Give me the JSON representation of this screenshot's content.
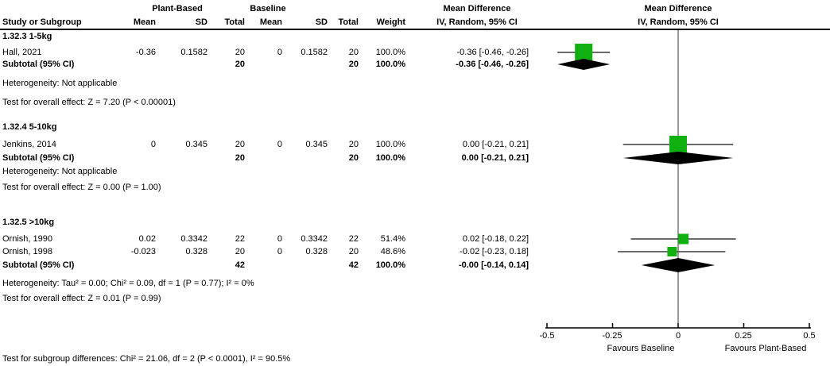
{
  "header": {
    "group_plant": "Plant-Based",
    "group_baseline": "Baseline",
    "md_left_title": "Mean Difference",
    "md_left_sub": "IV, Random, 95% CI",
    "md_right_title": "Mean Difference",
    "md_right_sub": "IV, Random, 95% CI",
    "study_col": "Study or Subgroup",
    "cols": {
      "pb_mean": "Mean",
      "pb_sd": "SD",
      "pb_total": "Total",
      "bl_mean": "Mean",
      "bl_sd": "SD",
      "bl_total": "Total",
      "weight": "Weight"
    }
  },
  "colors": {
    "marker_green": "#10B010",
    "diamond_black": "#000000",
    "ci_line": "#3a3a3a",
    "axis_black": "#000000"
  },
  "rows": [
    {
      "type": "section",
      "label": "1.32.3 1-5kg"
    },
    {
      "type": "study",
      "label": "Hall, 2021",
      "pb_mean": "-0.36",
      "pb_sd": "0.1582",
      "pb_total": "20",
      "bl_mean": "0",
      "bl_sd": "0.1582",
      "bl_total": "20",
      "weight": "100.0%",
      "md": "-0.36 [-0.46, -0.26]",
      "est": -0.36,
      "lo": -0.46,
      "hi": -0.26
    },
    {
      "type": "subtotal",
      "label": "Subtotal (95% CI)",
      "pb_total": "20",
      "bl_total": "20",
      "weight": "100.0%",
      "md": "-0.36 [-0.46, -0.26]",
      "est": -0.36,
      "lo": -0.46,
      "hi": -0.26
    },
    {
      "type": "note",
      "label": "Heterogeneity: Not applicable"
    },
    {
      "type": "note",
      "label": "Test for overall effect: Z = 7.20 (P < 0.00001)"
    },
    {
      "type": "section",
      "label": "1.32.4 5-10kg"
    },
    {
      "type": "study",
      "label": "Jenkins, 2014",
      "pb_mean": "0",
      "pb_sd": "0.345",
      "pb_total": "20",
      "bl_mean": "0",
      "bl_sd": "0.345",
      "bl_total": "20",
      "weight": "100.0%",
      "md": "0.00 [-0.21, 0.21]",
      "est": 0,
      "lo": -0.21,
      "hi": 0.21
    },
    {
      "type": "subtotal",
      "label": "Subtotal (95% CI)",
      "pb_total": "20",
      "bl_total": "20",
      "weight": "100.0%",
      "md": "0.00 [-0.21, 0.21]",
      "est": 0,
      "lo": -0.21,
      "hi": 0.21
    },
    {
      "type": "note",
      "label": "Heterogeneity: Not applicable"
    },
    {
      "type": "note",
      "label": "Test for overall effect: Z = 0.00 (P = 1.00)"
    },
    {
      "type": "section",
      "label": "1.32.5 >10kg"
    },
    {
      "type": "study",
      "label": "Ornish, 1990",
      "pb_mean": "0.02",
      "pb_sd": "0.3342",
      "pb_total": "22",
      "bl_mean": "0",
      "bl_sd": "0.3342",
      "bl_total": "22",
      "weight": "51.4%",
      "md": "0.02 [-0.18, 0.22]",
      "est": 0.02,
      "lo": -0.18,
      "hi": 0.22
    },
    {
      "type": "study",
      "label": "Ornish, 1998",
      "pb_mean": "-0.023",
      "pb_sd": "0.328",
      "pb_total": "20",
      "bl_mean": "0",
      "bl_sd": "0.328",
      "bl_total": "20",
      "weight": "48.6%",
      "md": "-0.02 [-0.23, 0.18]",
      "est": -0.023,
      "lo": -0.23,
      "hi": 0.18
    },
    {
      "type": "subtotal",
      "label": "Subtotal (95% CI)",
      "pb_total": "42",
      "bl_total": "42",
      "weight": "100.0%",
      "md": "-0.00 [-0.14, 0.14]",
      "est": 0,
      "lo": -0.14,
      "hi": 0.14
    },
    {
      "type": "note",
      "label": "Heterogeneity: Tau² = 0.00; Chi² = 0.09, df = 1 (P = 0.77); I² = 0%"
    },
    {
      "type": "note",
      "label": "Test for overall effect: Z = 0.01 (P = 0.99)"
    }
  ],
  "axis": {
    "tick_labels": [
      "-0.5",
      "-0.25",
      "0",
      "0.25",
      "0.5"
    ],
    "tick_values": [
      -0.5,
      -0.25,
      0,
      0.25,
      0.5
    ],
    "favours_left": "Favours Baseline",
    "favours_right": "Favours Plant-Based"
  },
  "footer": "Test for subgroup differences: Chi² = 21.06, df = 2 (P < 0.0001), I² = 90.5%",
  "chart_data": {
    "type": "forest",
    "effect_measure": "Mean Difference, IV, Random, 95% CI",
    "xlim": [
      -0.5,
      0.5
    ],
    "x_ticks": [
      -0.5,
      -0.25,
      0,
      0.25,
      0.5
    ],
    "favours": [
      "Favours Baseline",
      "Favours Plant-Based"
    ],
    "subgroups": [
      {
        "name": "1.32.3 1-5kg",
        "studies": [
          {
            "study": "Hall, 2021",
            "plant_mean": -0.36,
            "plant_sd": 0.1582,
            "plant_total": 20,
            "baseline_mean": 0,
            "baseline_sd": 0.1582,
            "baseline_total": 20,
            "weight_pct": 100.0,
            "md": -0.36,
            "ci": [
              -0.46,
              -0.26
            ]
          }
        ],
        "subtotal": {
          "plant_total": 20,
          "baseline_total": 20,
          "weight_pct": 100.0,
          "md": -0.36,
          "ci": [
            -0.46,
            -0.26
          ]
        },
        "heterogeneity": "Not applicable",
        "overall_effect": "Z = 7.20 (P < 0.00001)"
      },
      {
        "name": "1.32.4 5-10kg",
        "studies": [
          {
            "study": "Jenkins, 2014",
            "plant_mean": 0,
            "plant_sd": 0.345,
            "plant_total": 20,
            "baseline_mean": 0,
            "baseline_sd": 0.345,
            "baseline_total": 20,
            "weight_pct": 100.0,
            "md": 0.0,
            "ci": [
              -0.21,
              0.21
            ]
          }
        ],
        "subtotal": {
          "plant_total": 20,
          "baseline_total": 20,
          "weight_pct": 100.0,
          "md": 0.0,
          "ci": [
            -0.21,
            0.21
          ]
        },
        "heterogeneity": "Not applicable",
        "overall_effect": "Z = 0.00 (P = 1.00)"
      },
      {
        "name": "1.32.5 >10kg",
        "studies": [
          {
            "study": "Ornish, 1990",
            "plant_mean": 0.02,
            "plant_sd": 0.3342,
            "plant_total": 22,
            "baseline_mean": 0,
            "baseline_sd": 0.3342,
            "baseline_total": 22,
            "weight_pct": 51.4,
            "md": 0.02,
            "ci": [
              -0.18,
              0.22
            ]
          },
          {
            "study": "Ornish, 1998",
            "plant_mean": -0.023,
            "plant_sd": 0.328,
            "plant_total": 20,
            "baseline_mean": 0,
            "baseline_sd": 0.328,
            "baseline_total": 20,
            "weight_pct": 48.6,
            "md": -0.02,
            "ci": [
              -0.23,
              0.18
            ]
          }
        ],
        "subtotal": {
          "plant_total": 42,
          "baseline_total": 42,
          "weight_pct": 100.0,
          "md": -0.0,
          "ci": [
            -0.14,
            0.14
          ]
        },
        "heterogeneity": "Tau² = 0.00; Chi² = 0.09, df = 1 (P = 0.77); I² = 0%",
        "overall_effect": "Z = 0.01 (P = 0.99)"
      }
    ],
    "subgroup_differences": "Chi² = 21.06, df = 2 (P < 0.0001), I² = 90.5%"
  }
}
